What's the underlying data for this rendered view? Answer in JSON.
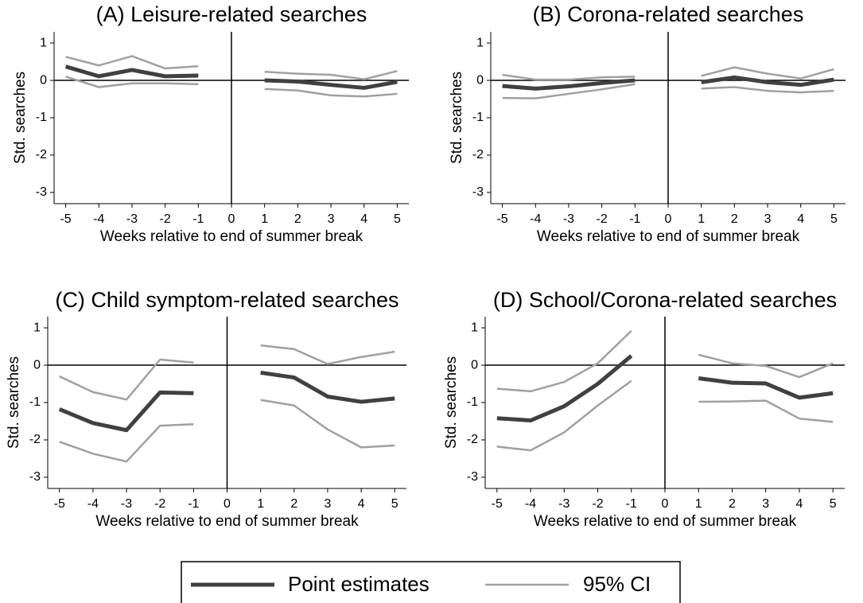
{
  "chart_data": [
    {
      "type": "line",
      "title": "(A) Leisure-related searches",
      "x_label": "Weeks relative to end of summer break",
      "y_label": "Std. searches",
      "x": [
        -5,
        -4,
        -3,
        -2,
        -1,
        0,
        1,
        2,
        3,
        4,
        5
      ],
      "values": [
        0.37,
        0.11,
        0.28,
        0.11,
        0.13,
        null,
        0,
        -0.03,
        -0.12,
        -0.2,
        -0.04
      ],
      "ci_upper": [
        0.63,
        0.4,
        0.65,
        0.32,
        0.38,
        null,
        0.23,
        0.18,
        0.15,
        0.03,
        0.25
      ],
      "ci_lower": [
        0.1,
        -0.18,
        -0.08,
        -0.08,
        -0.1,
        null,
        -0.23,
        -0.27,
        -0.4,
        -0.43,
        -0.36
      ],
      "xlim": [
        -5.35,
        5.35
      ],
      "xticks": [
        -5,
        -4,
        -3,
        -2,
        -1,
        0,
        1,
        2,
        3,
        4,
        5
      ],
      "ylim": [
        -3.3,
        1.3
      ],
      "yticks": [
        1,
        0,
        -1,
        -2,
        -3
      ]
    },
    {
      "type": "line",
      "title": "(B) Corona-related searches",
      "x_label": "Weeks relative to end of summer break",
      "y_label": "Std. searches",
      "x": [
        -5,
        -4,
        -3,
        -2,
        -1,
        0,
        1,
        2,
        3,
        4,
        5
      ],
      "values": [
        -0.15,
        -0.22,
        -0.16,
        -0.07,
        0,
        null,
        -0.05,
        0.08,
        -0.05,
        -0.12,
        0.02
      ],
      "ci_upper": [
        0.15,
        0.02,
        0.02,
        0.08,
        0.1,
        null,
        0.12,
        0.35,
        0.18,
        0.05,
        0.3
      ],
      "ci_lower": [
        -0.47,
        -0.48,
        -0.36,
        -0.24,
        -0.1,
        null,
        -0.22,
        -0.18,
        -0.28,
        -0.32,
        -0.28
      ],
      "xlim": [
        -5.35,
        5.35
      ],
      "xticks": [
        -5,
        -4,
        -3,
        -2,
        -1,
        0,
        1,
        2,
        3,
        4,
        5
      ],
      "ylim": [
        -3.3,
        1.3
      ],
      "yticks": [
        1,
        0,
        -1,
        -2,
        -3
      ]
    },
    {
      "type": "line",
      "title": "(C) Child symptom-related searches",
      "x_label": "Weeks relative to end of summer break",
      "y_label": "Std. searches",
      "x": [
        -5,
        -4,
        -3,
        -2,
        -1,
        0,
        1,
        2,
        3,
        4,
        5
      ],
      "values": [
        -1.18,
        -1.55,
        -1.74,
        -0.73,
        -0.75,
        null,
        -0.2,
        -0.33,
        -0.84,
        -0.98,
        -0.89
      ],
      "ci_upper": [
        -0.3,
        -0.72,
        -0.92,
        0.15,
        0.07,
        null,
        0.53,
        0.43,
        0.03,
        0.22,
        0.36
      ],
      "ci_lower": [
        -2.05,
        -2.37,
        -2.58,
        -1.62,
        -1.58,
        null,
        -0.93,
        -1.08,
        -1.72,
        -2.2,
        -2.15
      ],
      "xlim": [
        -5.35,
        5.35
      ],
      "xticks": [
        -5,
        -4,
        -3,
        -2,
        -1,
        0,
        1,
        2,
        3,
        4,
        5
      ],
      "ylim": [
        -3.3,
        1.3
      ],
      "yticks": [
        1,
        0,
        -1,
        -2,
        -3
      ]
    },
    {
      "type": "line",
      "title": "(D) School/Corona-related searches",
      "x_label": "Weeks relative to end of summer break",
      "y_label": "Std. searches",
      "x": [
        -5,
        -4,
        -3,
        -2,
        -1,
        0,
        1,
        2,
        3,
        4,
        5
      ],
      "values": [
        -1.42,
        -1.48,
        -1.1,
        -0.5,
        0.25,
        null,
        -0.35,
        -0.47,
        -0.49,
        -0.87,
        -0.75
      ],
      "ci_upper": [
        -0.63,
        -0.7,
        -0.45,
        0.05,
        0.92,
        null,
        0.28,
        0.05,
        -0.02,
        -0.32,
        0.05
      ],
      "ci_lower": [
        -2.18,
        -2.28,
        -1.8,
        -1.08,
        -0.42,
        null,
        -0.98,
        -0.97,
        -0.95,
        -1.43,
        -1.52
      ],
      "xlim": [
        -5.35,
        5.35
      ],
      "xticks": [
        -5,
        -4,
        -3,
        -2,
        -1,
        0,
        1,
        2,
        3,
        4,
        5
      ],
      "ylim": [
        -3.3,
        1.3
      ],
      "yticks": [
        1,
        0,
        -1,
        -2,
        -3
      ]
    }
  ],
  "reference_lines": {
    "x": 0,
    "y": 0
  },
  "legend": [
    {
      "name": "Point estimates",
      "color": "#404040"
    },
    {
      "name": "95% CI",
      "color": "#a0a0a0"
    }
  ]
}
